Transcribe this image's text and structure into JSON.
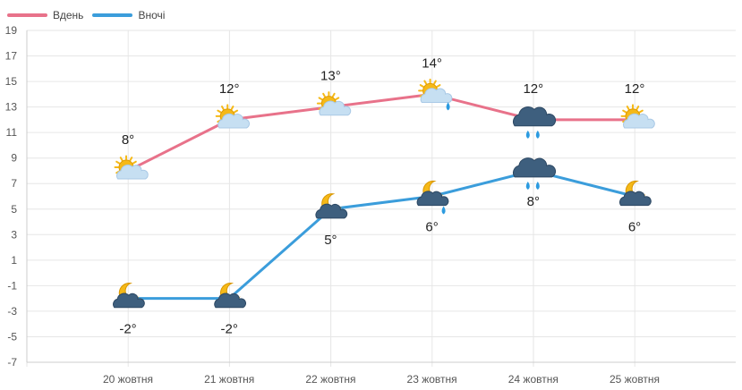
{
  "legend": {
    "day_label": "Вдень",
    "night_label": "Вночі"
  },
  "colors": {
    "day": "#e8728a",
    "night": "#3b9ddb",
    "grid": "#e6e6e6",
    "sun": "#f5b918",
    "cloud_light": "#c6dff2",
    "cloud_dark": "#3e5f7e",
    "rain": "#2c9be0"
  },
  "chart_data": {
    "type": "line",
    "categories": [
      "20 жовтня",
      "21 жовтня",
      "22 жовтня",
      "23 жовтня",
      "24 жовтня",
      "25 жовтня"
    ],
    "series": [
      {
        "name": "Вдень",
        "values": [
          8,
          12,
          13,
          14,
          12,
          12
        ],
        "labels": [
          "8°",
          "12°",
          "13°",
          "14°",
          "12°",
          "12°"
        ],
        "icons": [
          "sun-cloud-icon",
          "sun-cloud-icon",
          "sun-cloud-icon",
          "sun-cloud-rain-icon",
          "rain-cloud-icon",
          "sun-cloud-icon"
        ]
      },
      {
        "name": "Вночі",
        "values": [
          -2,
          -2,
          5,
          6,
          8,
          6
        ],
        "labels": [
          "-2°",
          "-2°",
          "5°",
          "6°",
          "8°",
          "6°"
        ],
        "icons": [
          "moon-cloud-icon",
          "moon-cloud-icon",
          "moon-cloud-icon",
          "moon-cloud-rain-icon",
          "rain-cloud-icon",
          "moon-cloud-icon"
        ]
      }
    ],
    "yticks": [
      19,
      17,
      15,
      13,
      11,
      9,
      7,
      5,
      3,
      1,
      -1,
      -3,
      -5,
      -7
    ],
    "ylim": [
      -7,
      19
    ],
    "grid": true,
    "legend_position": "top-left"
  }
}
